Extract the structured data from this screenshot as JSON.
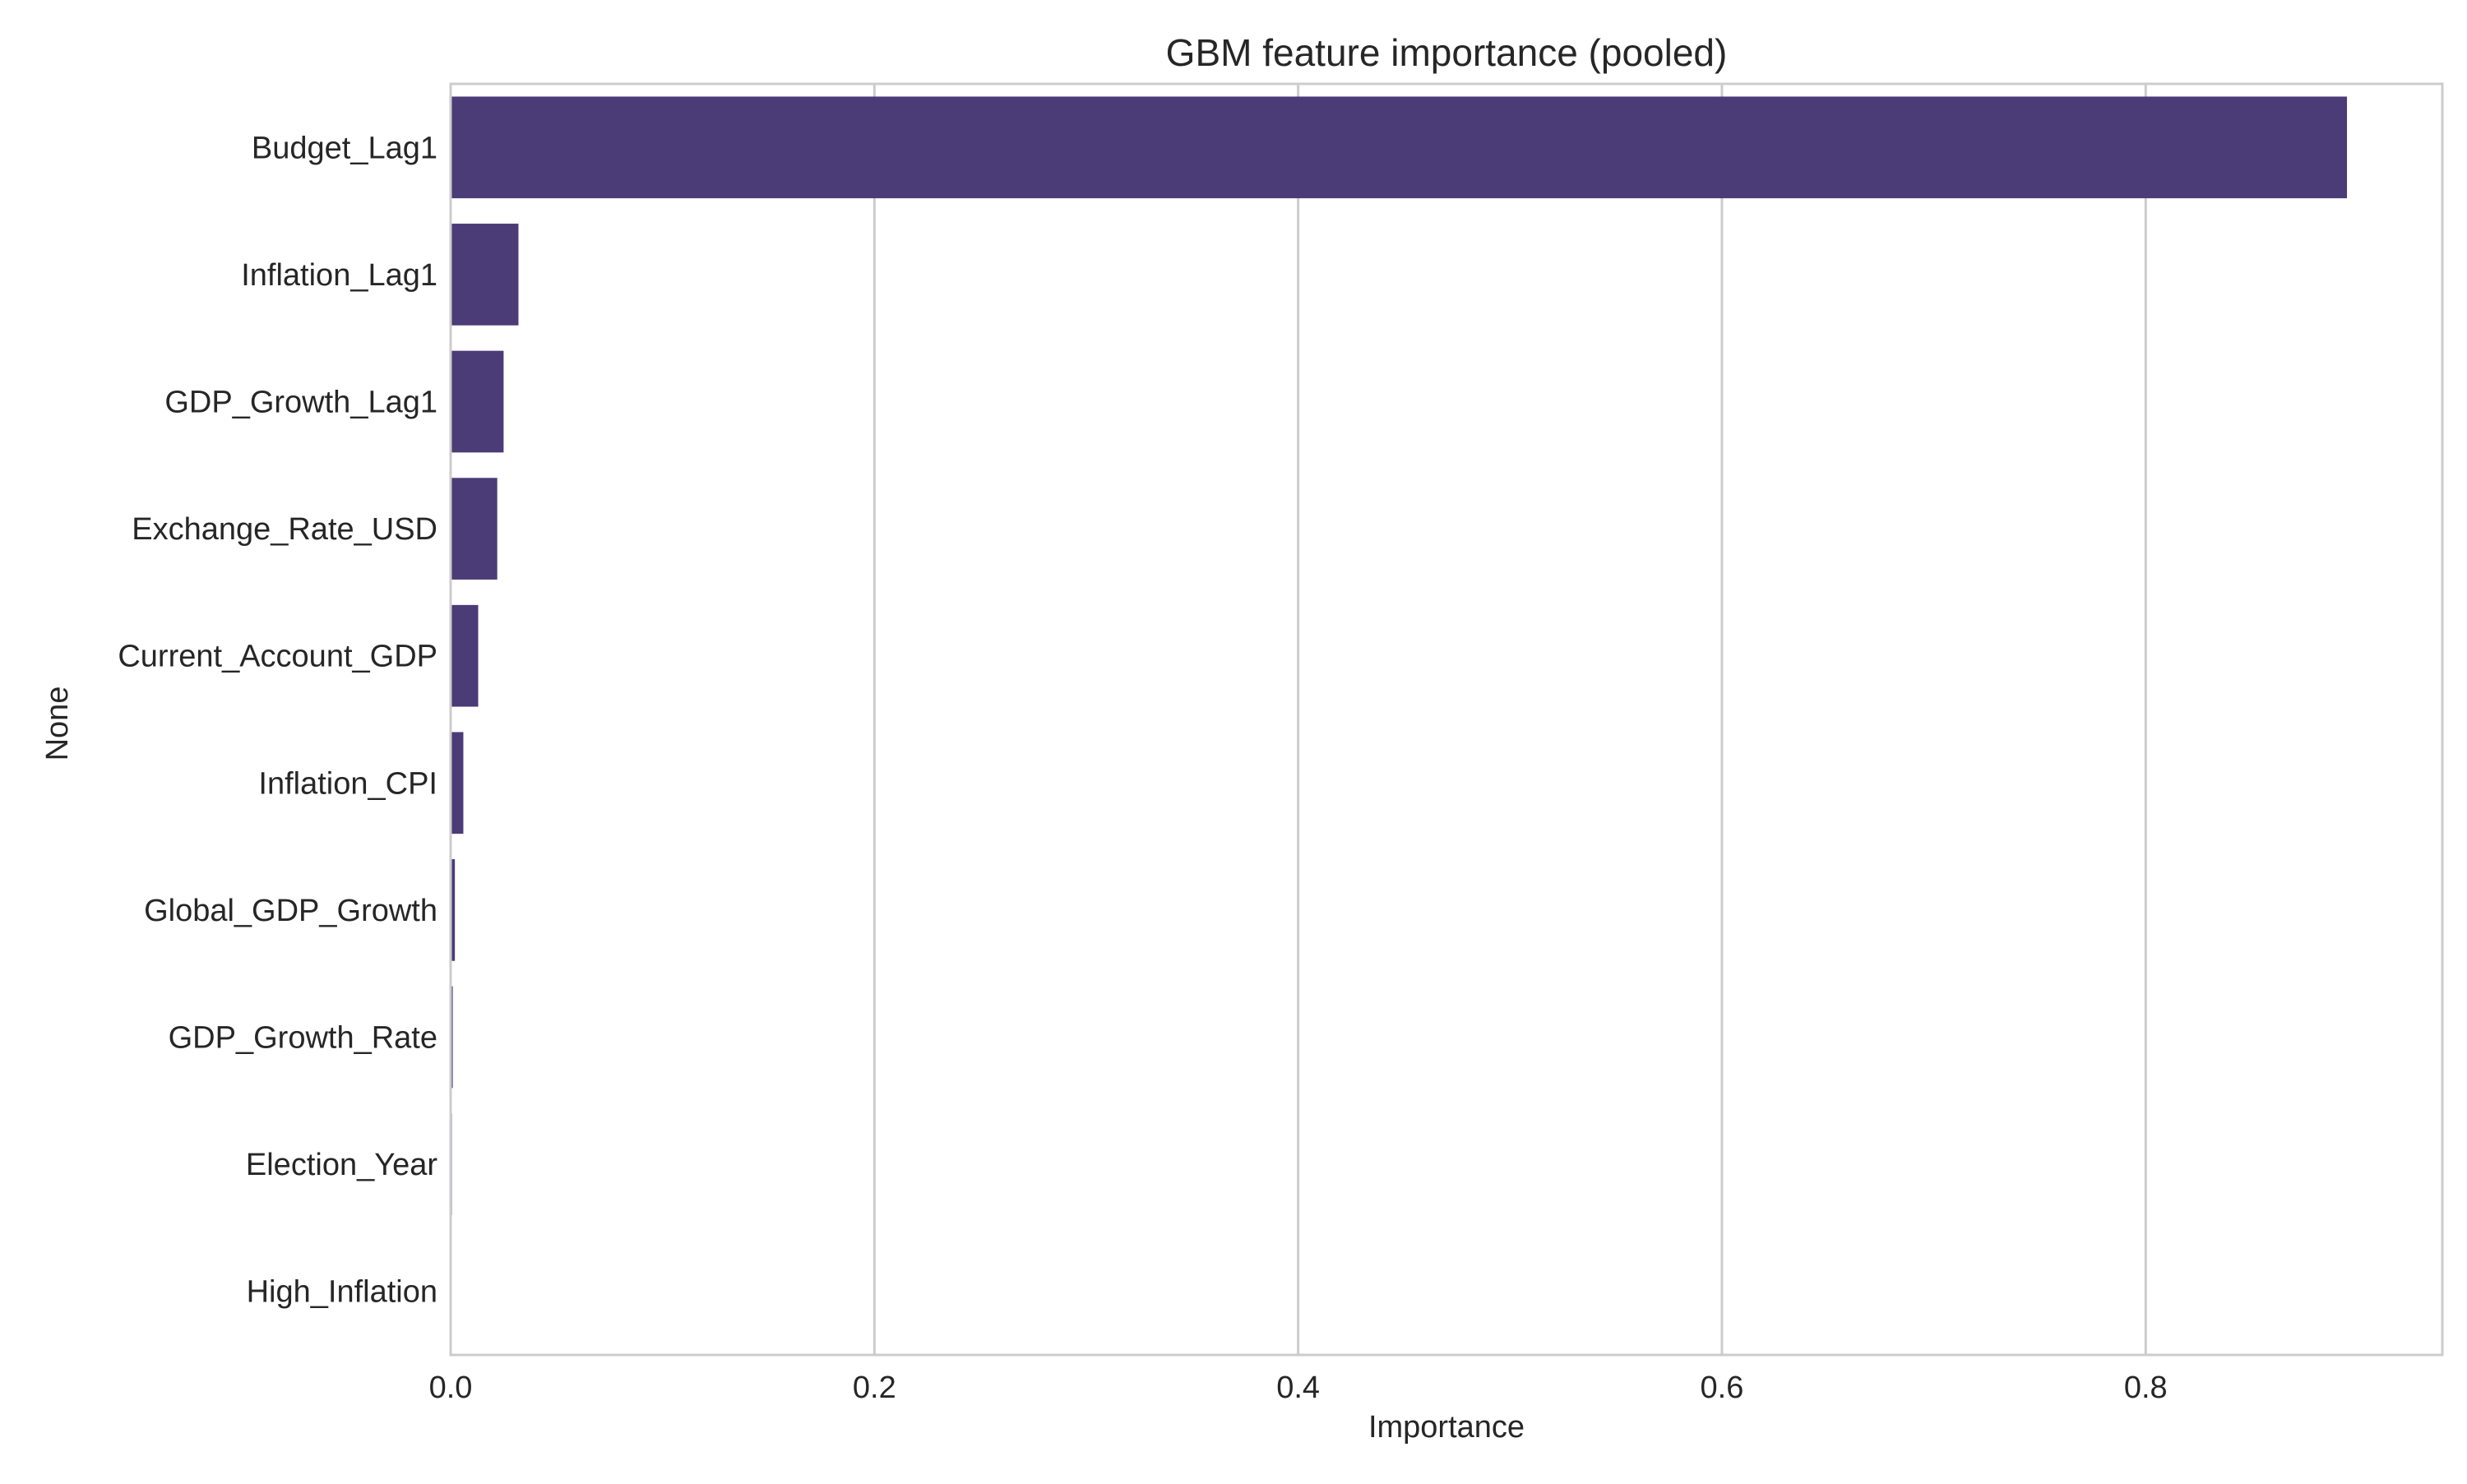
{
  "chart_data": {
    "type": "bar",
    "orientation": "horizontal",
    "title": "GBM feature importance (pooled)",
    "xlabel": "Importance",
    "ylabel": "None",
    "xlim": [
      0,
      0.94
    ],
    "xticks": [
      0.0,
      0.2,
      0.4,
      0.6,
      0.8
    ],
    "xtick_labels": [
      "0.0",
      "0.2",
      "0.4",
      "0.6",
      "0.8"
    ],
    "grid": true,
    "categories": [
      "Budget_Lag1",
      "Inflation_Lag1",
      "GDP_Growth_Lag1",
      "Exchange_Rate_USD",
      "Current_Account_GDP",
      "Inflation_CPI",
      "Global_GDP_Growth",
      "GDP_Growth_Rate",
      "Election_Year",
      "High_Inflation"
    ],
    "values": [
      0.895,
      0.032,
      0.025,
      0.022,
      0.013,
      0.006,
      0.002,
      0.001,
      0.0007,
      0.0
    ],
    "colors": [
      "#4b3b77",
      "#4b3b77",
      "#4b3b77",
      "#4b3b77",
      "#4b3b77",
      "#4b3b77",
      "#4b3b77",
      "#4b3b77",
      "#8f86b3",
      "#d9d6e8"
    ]
  }
}
